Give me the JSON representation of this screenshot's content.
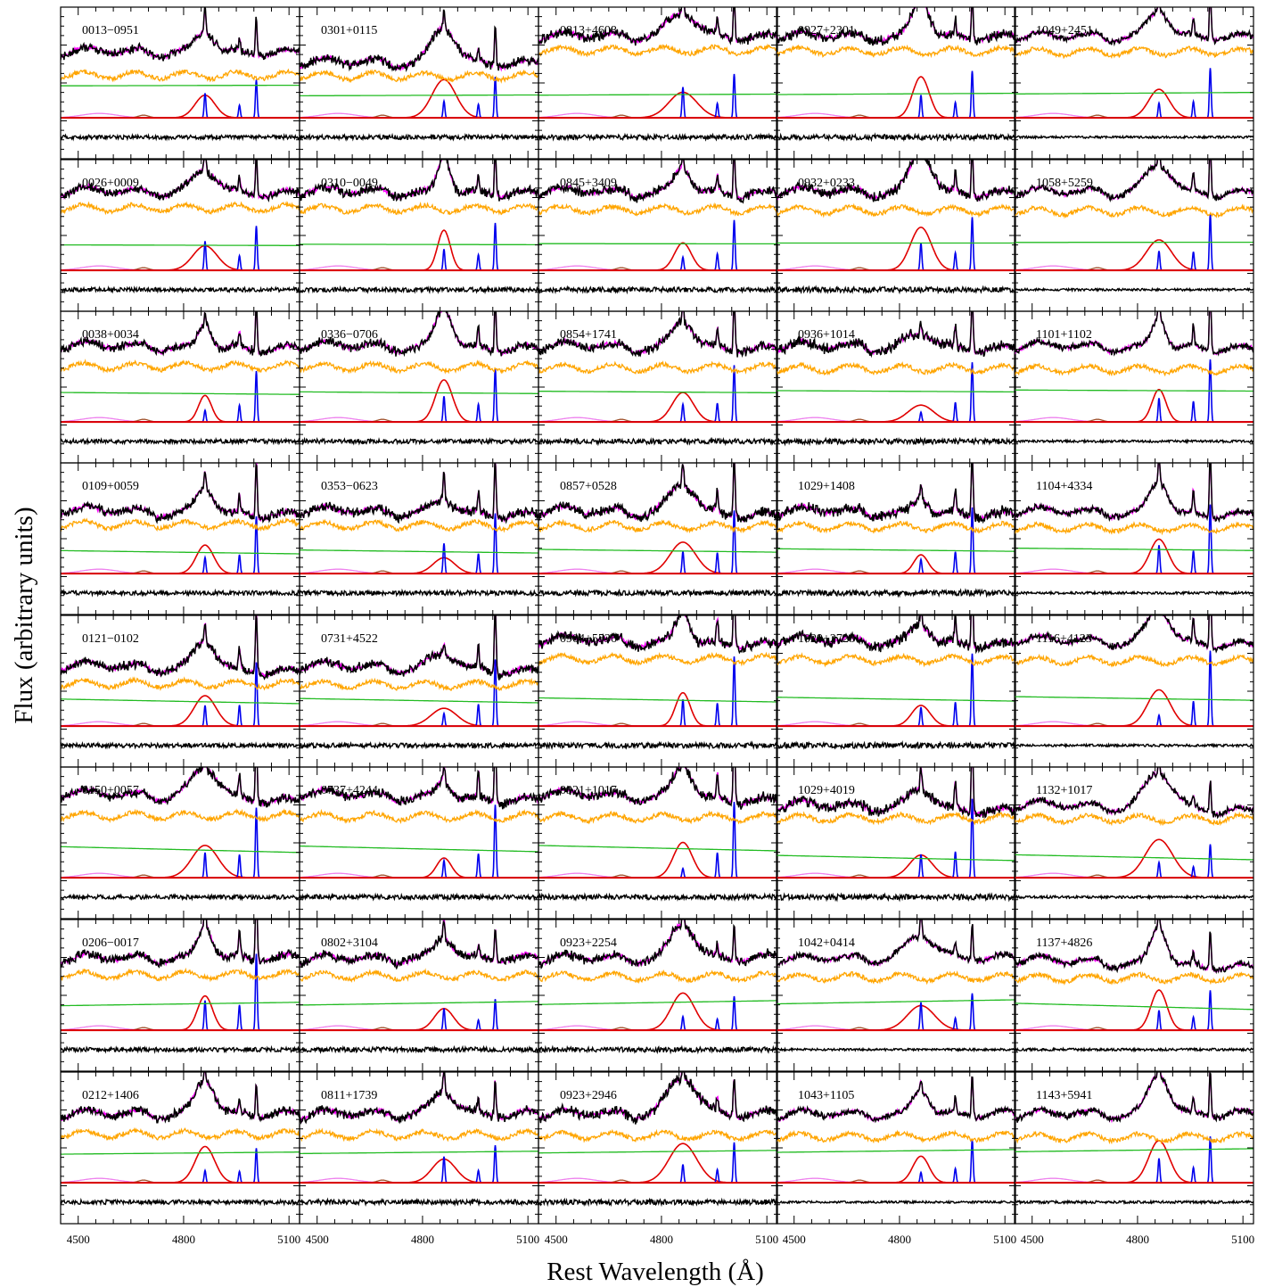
{
  "chart_data": {
    "type": "line",
    "layout": "grid of small multiples, 8 rows x 5 columns",
    "xlabel": "Rest Wavelength (Å)",
    "ylabel": "Flux (arbitrary units)",
    "xlim": [
      4450,
      5130
    ],
    "x_ticks": [
      4500,
      4800,
      5100
    ],
    "x_ticks_labels": [
      "4500",
      "4800",
      "5100"
    ],
    "components": [
      {
        "role": "observed spectrum and residuals",
        "color": "#000000"
      },
      {
        "role": "total model fit",
        "color": "#ff00ff"
      },
      {
        "role": "host galaxy template",
        "color": "#ffa500"
      },
      {
        "role": "power-law continuum",
        "color": "#22bb22"
      },
      {
        "role": "broad H-beta",
        "color": "#e00000"
      },
      {
        "role": "narrow lines",
        "color": "#0000ee"
      },
      {
        "role": "Fe II",
        "color": "#ee82ee"
      },
      {
        "role": "He II",
        "color": "#a0522d"
      }
    ],
    "panels": [
      {
        "label": "0013−0951",
        "row": 0,
        "col": 0
      },
      {
        "label": "0026+0009",
        "row": 1,
        "col": 0
      },
      {
        "label": "0038+0034",
        "row": 2,
        "col": 0
      },
      {
        "label": "0109+0059",
        "row": 3,
        "col": 0
      },
      {
        "label": "0121−0102",
        "row": 4,
        "col": 0
      },
      {
        "label": "0150+0057",
        "row": 5,
        "col": 0
      },
      {
        "label": "0206−0017",
        "row": 6,
        "col": 0
      },
      {
        "label": "0212+1406",
        "row": 7,
        "col": 0
      },
      {
        "label": "0301+0115",
        "row": 0,
        "col": 1
      },
      {
        "label": "0310−0049",
        "row": 1,
        "col": 1
      },
      {
        "label": "0336−0706",
        "row": 2,
        "col": 1
      },
      {
        "label": "0353−0623",
        "row": 3,
        "col": 1
      },
      {
        "label": "0731+4522",
        "row": 4,
        "col": 1
      },
      {
        "label": "0737+4244",
        "row": 5,
        "col": 1
      },
      {
        "label": "0802+3104",
        "row": 6,
        "col": 1
      },
      {
        "label": "0811+1739",
        "row": 7,
        "col": 1
      },
      {
        "label": "0813+4608",
        "row": 0,
        "col": 2
      },
      {
        "label": "0845+3409",
        "row": 1,
        "col": 2
      },
      {
        "label": "0854+1741",
        "row": 2,
        "col": 2
      },
      {
        "label": "0857+0528",
        "row": 3,
        "col": 2
      },
      {
        "label": "0904+5536",
        "row": 4,
        "col": 2
      },
      {
        "label": "0921+1017",
        "row": 5,
        "col": 2
      },
      {
        "label": "0923+2254",
        "row": 6,
        "col": 2
      },
      {
        "label": "0923+2946",
        "row": 7,
        "col": 2
      },
      {
        "label": "0927+2301",
        "row": 0,
        "col": 3
      },
      {
        "label": "0932+0233",
        "row": 1,
        "col": 3
      },
      {
        "label": "0936+1014",
        "row": 2,
        "col": 3
      },
      {
        "label": "1029+1408",
        "row": 3,
        "col": 3
      },
      {
        "label": "1029+2728",
        "row": 4,
        "col": 3
      },
      {
        "label": "1029+4019",
        "row": 5,
        "col": 3
      },
      {
        "label": "1042+0414",
        "row": 6,
        "col": 3
      },
      {
        "label": "1043+1105",
        "row": 7,
        "col": 3
      },
      {
        "label": "1049+2451",
        "row": 0,
        "col": 4
      },
      {
        "label": "1058+5259",
        "row": 1,
        "col": 4
      },
      {
        "label": "1101+1102",
        "row": 2,
        "col": 4
      },
      {
        "label": "1104+4334",
        "row": 3,
        "col": 4
      },
      {
        "label": "1116+4123",
        "row": 4,
        "col": 4
      },
      {
        "label": "1132+1017",
        "row": 5,
        "col": 4
      },
      {
        "label": "1137+4826",
        "row": 6,
        "col": 4
      },
      {
        "label": "1143+5941",
        "row": 7,
        "col": 4
      }
    ]
  }
}
